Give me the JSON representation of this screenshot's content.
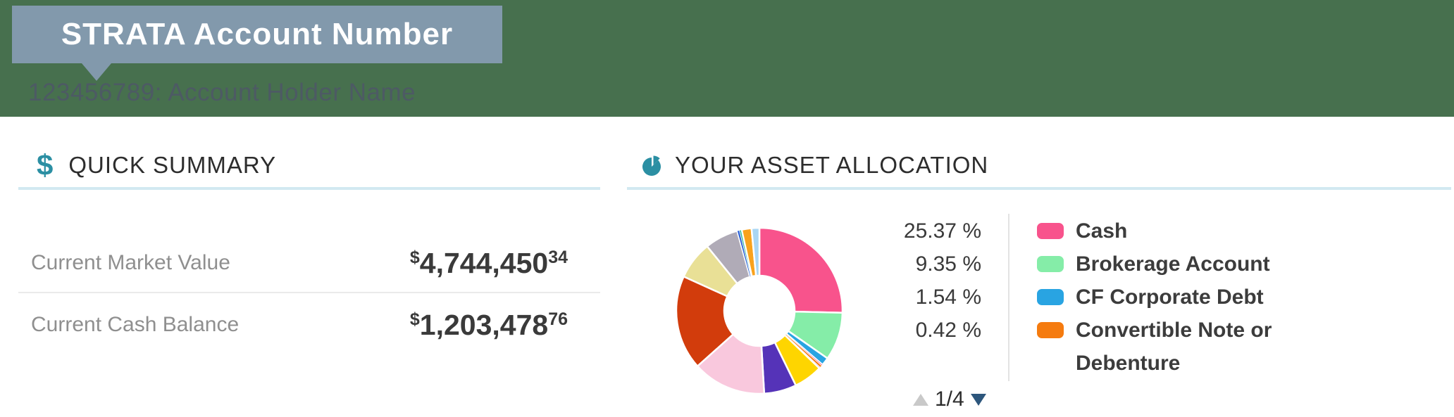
{
  "banner": {
    "tooltip_label": "STRATA Account Number",
    "account_line": "123456789: Account Holder Name",
    "bg_color": "#47704e",
    "tooltip_bg": "#8299ac"
  },
  "accents": {
    "teal": "#2b8fa3",
    "underline_blue": "#d2e9f1",
    "pager_up_disabled": "#c9c9c9",
    "pager_down_active": "#2d567c"
  },
  "quick_summary": {
    "title": "QUICK SUMMARY",
    "rows": [
      {
        "label": "Current Market Value",
        "currency": "$",
        "amount": "4,744,450",
        "cents": "34"
      },
      {
        "label": "Current Cash Balance",
        "currency": "$",
        "amount": "1,203,478",
        "cents": "76"
      }
    ]
  },
  "asset_allocation": {
    "title": "YOUR ASSET ALLOCATION",
    "percent_rows": [
      {
        "value": "25.37 %"
      },
      {
        "value": "9.35 %"
      },
      {
        "value": "1.54 %"
      },
      {
        "value": "0.42 %"
      }
    ],
    "legend": [
      {
        "label": "Cash",
        "color": "#f8538c"
      },
      {
        "label": "Brokerage Account",
        "color": "#85eda8"
      },
      {
        "label": "CF Corporate Debt",
        "color": "#29a4e2"
      },
      {
        "label": "Convertible Note or Debenture",
        "color": "#f57b0f"
      }
    ],
    "pagination": {
      "label": "1/4"
    }
  },
  "chart_data": {
    "type": "pie",
    "donut": true,
    "title": "YOUR ASSET ALLOCATION",
    "unit": "%",
    "start_angle_deg": 0,
    "direction": "clockwise",
    "legend_position": "right",
    "legend_page": "1/4",
    "slices": [
      {
        "label": "Cash",
        "value": 25.37,
        "color": "#f8538c"
      },
      {
        "label": "Brokerage Account",
        "value": 9.35,
        "color": "#85eda8"
      },
      {
        "label": "CF Corporate Debt",
        "value": 1.54,
        "color": "#29a4e2"
      },
      {
        "label": "",
        "value": 0.25,
        "color": "#f2739e"
      },
      {
        "label": "Convertible Note or Debenture",
        "value": 0.42,
        "color": "#f57b0f"
      },
      {
        "label": "",
        "value": 0.25,
        "color": "#6a3fc0"
      },
      {
        "label": "",
        "value": 5.6,
        "color": "#fed500"
      },
      {
        "label": "",
        "value": 6.3,
        "color": "#5533b8"
      },
      {
        "label": "",
        "value": 14.3,
        "color": "#f9c8dd"
      },
      {
        "label": "",
        "value": 18.4,
        "color": "#d23c0c"
      },
      {
        "label": "",
        "value": 7.4,
        "color": "#e9e096"
      },
      {
        "label": "",
        "value": 6.5,
        "color": "#b0abb7"
      },
      {
        "label": "",
        "value": 0.45,
        "color": "#2f63d8"
      },
      {
        "label": "",
        "value": 0.45,
        "color": "#2db89e"
      },
      {
        "label": "",
        "value": 1.9,
        "color": "#f9a21d"
      },
      {
        "label": "",
        "value": 1.52,
        "color": "#a9d6f4"
      }
    ]
  }
}
